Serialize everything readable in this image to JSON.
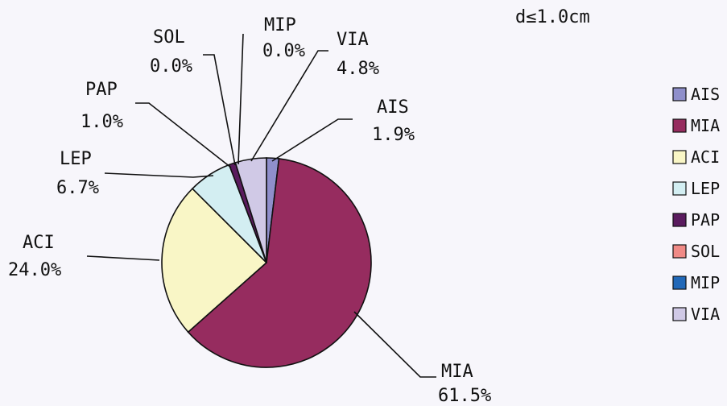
{
  "chart_data": {
    "type": "pie",
    "title": "d≤1.0cm",
    "legend_position": "right",
    "slices": [
      {
        "name": "AIS",
        "value": 1.9,
        "label": "1.9%",
        "color": "#8f8fcb"
      },
      {
        "name": "MIA",
        "value": 61.5,
        "label": "61.5%",
        "color": "#962c5f"
      },
      {
        "name": "ACI",
        "value": 24.0,
        "label": "24.0%",
        "color": "#f9f6c6"
      },
      {
        "name": "LEP",
        "value": 6.7,
        "label": "6.7%",
        "color": "#d3eef2"
      },
      {
        "name": "PAP",
        "value": 1.0,
        "label": "1.0%",
        "color": "#5a1b5e"
      },
      {
        "name": "SOL",
        "value": 0.0,
        "label": "0.0%",
        "color": "#f08a86"
      },
      {
        "name": "MIP",
        "value": 0.0,
        "label": "0.0%",
        "color": "#2168b8"
      },
      {
        "name": "VIA",
        "value": 4.8,
        "label": "4.8%",
        "color": "#d0c9e6"
      }
    ]
  }
}
